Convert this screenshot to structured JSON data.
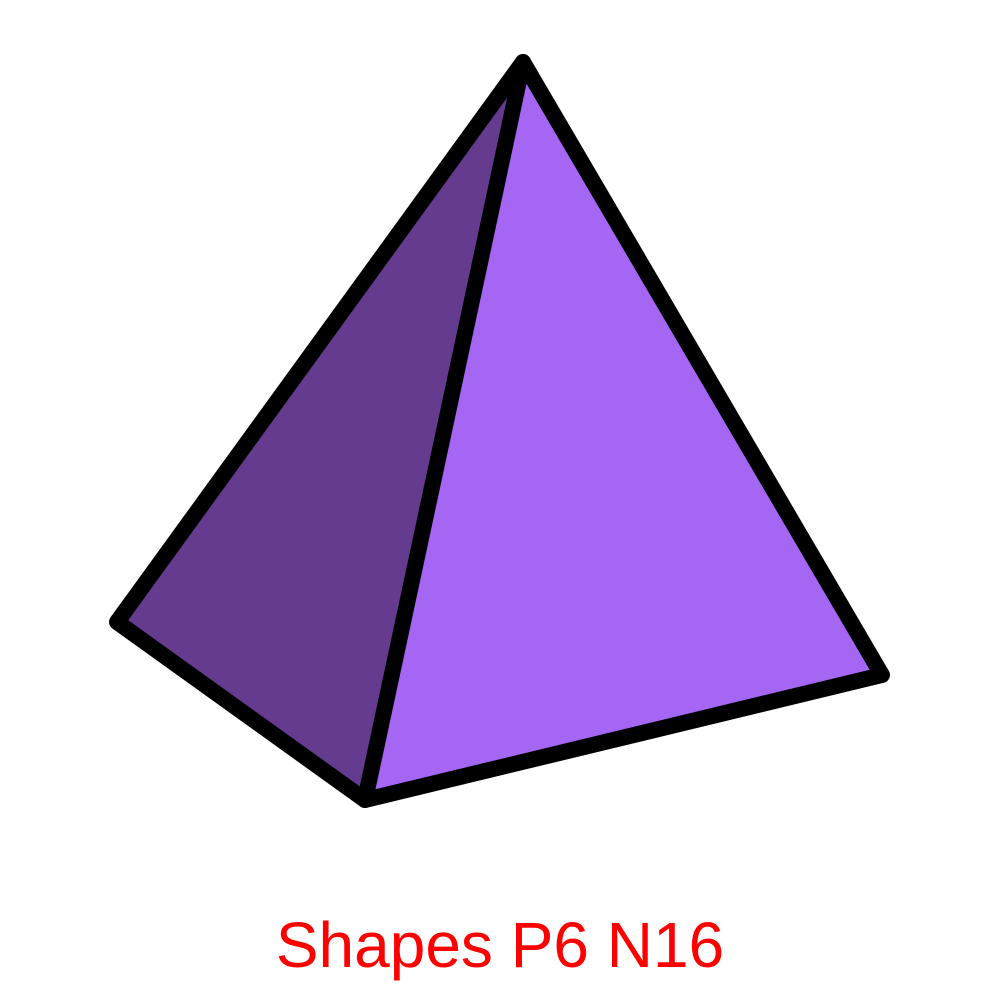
{
  "caption": "Shapes P6 N16",
  "colors": {
    "left_face": "#643b8f",
    "right_face": "#a566f3",
    "edge": "#000000",
    "caption": "#ff0000",
    "background": "#ffffff"
  },
  "shape": "triangular-pyramid"
}
